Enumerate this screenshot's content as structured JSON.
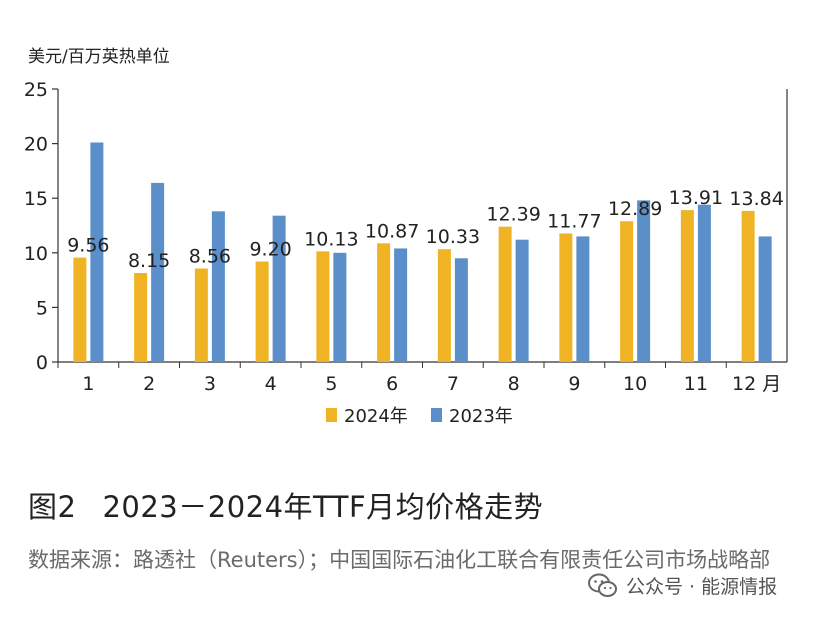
{
  "chart_data": {
    "type": "bar",
    "ylabel": "美元/百万英热单位",
    "ylim": [
      0,
      25
    ],
    "yticks": [
      0,
      5,
      10,
      15,
      20,
      25
    ],
    "categories": [
      "1",
      "2",
      "3",
      "4",
      "5",
      "6",
      "7",
      "8",
      "9",
      "10",
      "11",
      "12 月"
    ],
    "series": [
      {
        "name": "2024年",
        "color": "#f0b323",
        "values": [
          9.56,
          8.15,
          8.56,
          9.2,
          10.13,
          10.87,
          10.33,
          12.39,
          11.77,
          12.89,
          13.91,
          13.84
        ],
        "labels": [
          "9.56",
          "8.15",
          "8.56",
          "9.20",
          "10.13",
          "10.87",
          "10.33",
          "12.39",
          "11.77",
          "12.89",
          "13.91",
          "13.84"
        ]
      },
      {
        "name": "2023年",
        "color": "#5b8fc9",
        "values": [
          20.1,
          16.4,
          13.8,
          13.4,
          10.0,
          10.4,
          9.5,
          11.2,
          11.5,
          14.8,
          14.4,
          11.5
        ]
      }
    ],
    "legend_position": "bottom-center",
    "grid": false
  },
  "figure": {
    "label": "图2",
    "title": "2023－2024年TTF月均价格走势"
  },
  "source_text": "数据来源：路透社（Reuters）；中国国际石油化工联合有限责任公司市场战略部",
  "watermark": {
    "icon": "wechat-icon",
    "text": "公众号 · 能源情报"
  }
}
